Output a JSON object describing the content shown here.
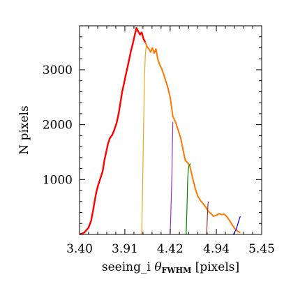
{
  "chart_data": {
    "type": "line",
    "xlabel": {
      "prefix": "seeing_i ",
      "symbol": "θ",
      "subscript": "FWHM",
      "suffix": " [pixels]"
    },
    "ylabel": "N pixels",
    "xlim": [
      3.4,
      5.45
    ],
    "ylim": [
      0,
      3800
    ],
    "x_tick_labels": [
      "3.40",
      "3.91",
      "4.42",
      "4.94",
      "5.45"
    ],
    "x_ticks": [
      3.4,
      3.91,
      4.42,
      4.94,
      5.45
    ],
    "y_tick_labels": [
      "1000",
      "2000",
      "3000"
    ],
    "y_ticks": [
      1000,
      2000,
      3000
    ],
    "grid": false,
    "series": [
      {
        "key": "red",
        "color": "#ff0000",
        "points": [
          [
            3.4,
            0
          ],
          [
            3.45,
            30
          ],
          [
            3.5,
            120
          ],
          [
            3.53,
            250
          ],
          [
            3.55,
            420
          ],
          [
            3.57,
            600
          ],
          [
            3.59,
            780
          ],
          [
            3.61,
            900
          ],
          [
            3.63,
            1000
          ],
          [
            3.66,
            1150
          ],
          [
            3.68,
            1350
          ],
          [
            3.7,
            1500
          ],
          [
            3.72,
            1650
          ],
          [
            3.74,
            1750
          ],
          [
            3.77,
            1820
          ],
          [
            3.79,
            1900
          ],
          [
            3.82,
            2050
          ],
          [
            3.84,
            2200
          ],
          [
            3.86,
            2400
          ],
          [
            3.88,
            2600
          ],
          [
            3.9,
            2750
          ],
          [
            3.92,
            2900
          ],
          [
            3.94,
            3050
          ],
          [
            3.96,
            3200
          ],
          [
            3.98,
            3350
          ],
          [
            4.0,
            3480
          ],
          [
            4.02,
            3620
          ],
          [
            4.04,
            3760
          ],
          [
            4.06,
            3700
          ],
          [
            4.08,
            3640
          ],
          [
            4.1,
            3680
          ],
          [
            4.12,
            3560
          ],
          [
            4.14,
            3500
          ]
        ]
      },
      {
        "key": "orange",
        "color": "#ff7700",
        "points": [
          [
            4.14,
            3500
          ],
          [
            4.16,
            3420
          ],
          [
            4.18,
            3380
          ],
          [
            4.2,
            3320
          ],
          [
            4.22,
            3400
          ],
          [
            4.24,
            3300
          ],
          [
            4.26,
            3380
          ],
          [
            4.28,
            3200
          ],
          [
            4.3,
            3100
          ],
          [
            4.33,
            3000
          ],
          [
            4.36,
            2850
          ],
          [
            4.39,
            2700
          ],
          [
            4.42,
            2500
          ],
          [
            4.45,
            2150
          ],
          [
            4.48,
            2050
          ],
          [
            4.51,
            1900
          ],
          [
            4.54,
            1750
          ],
          [
            4.57,
            1500
          ],
          [
            4.59,
            1350
          ],
          [
            4.62,
            1300
          ],
          [
            4.64,
            1250
          ],
          [
            4.67,
            1050
          ],
          [
            4.7,
            850
          ],
          [
            4.73,
            700
          ],
          [
            4.76,
            620
          ],
          [
            4.79,
            560
          ],
          [
            4.82,
            500
          ],
          [
            4.85,
            420
          ],
          [
            4.88,
            380
          ],
          [
            4.91,
            330
          ],
          [
            4.94,
            350
          ],
          [
            4.97,
            380
          ],
          [
            5.0,
            360
          ],
          [
            5.03,
            370
          ],
          [
            5.06,
            320
          ],
          [
            5.09,
            250
          ],
          [
            5.12,
            170
          ],
          [
            5.15,
            100
          ],
          [
            5.18,
            60
          ],
          [
            5.21,
            30
          ]
        ]
      },
      {
        "key": "yellow",
        "color": "#e8a818",
        "points": [
          [
            4.1,
            0
          ],
          [
            4.11,
            900
          ],
          [
            4.12,
            1900
          ],
          [
            4.13,
            2800
          ],
          [
            4.14,
            3250
          ],
          [
            4.15,
            3450
          ]
        ]
      },
      {
        "key": "purple",
        "color": "#9932cc",
        "points": [
          [
            4.42,
            0
          ],
          [
            4.43,
            500
          ],
          [
            4.44,
            1100
          ],
          [
            4.445,
            1600
          ],
          [
            4.45,
            2050
          ]
        ]
      },
      {
        "key": "green",
        "color": "#008800",
        "points": [
          [
            4.6,
            0
          ],
          [
            4.61,
            550
          ],
          [
            4.615,
            900
          ],
          [
            4.62,
            1080
          ],
          [
            4.63,
            1250
          ],
          [
            4.65,
            1290
          ]
        ]
      },
      {
        "key": "brown",
        "color": "#993333",
        "points": [
          [
            4.83,
            0
          ],
          [
            4.84,
            350
          ],
          [
            4.845,
            550
          ],
          [
            4.85,
            600
          ]
        ]
      },
      {
        "key": "blue",
        "color": "#0000ff",
        "points": [
          [
            5.13,
            0
          ],
          [
            5.16,
            80
          ],
          [
            5.18,
            180
          ],
          [
            5.2,
            290
          ],
          [
            5.21,
            330
          ]
        ]
      }
    ]
  }
}
